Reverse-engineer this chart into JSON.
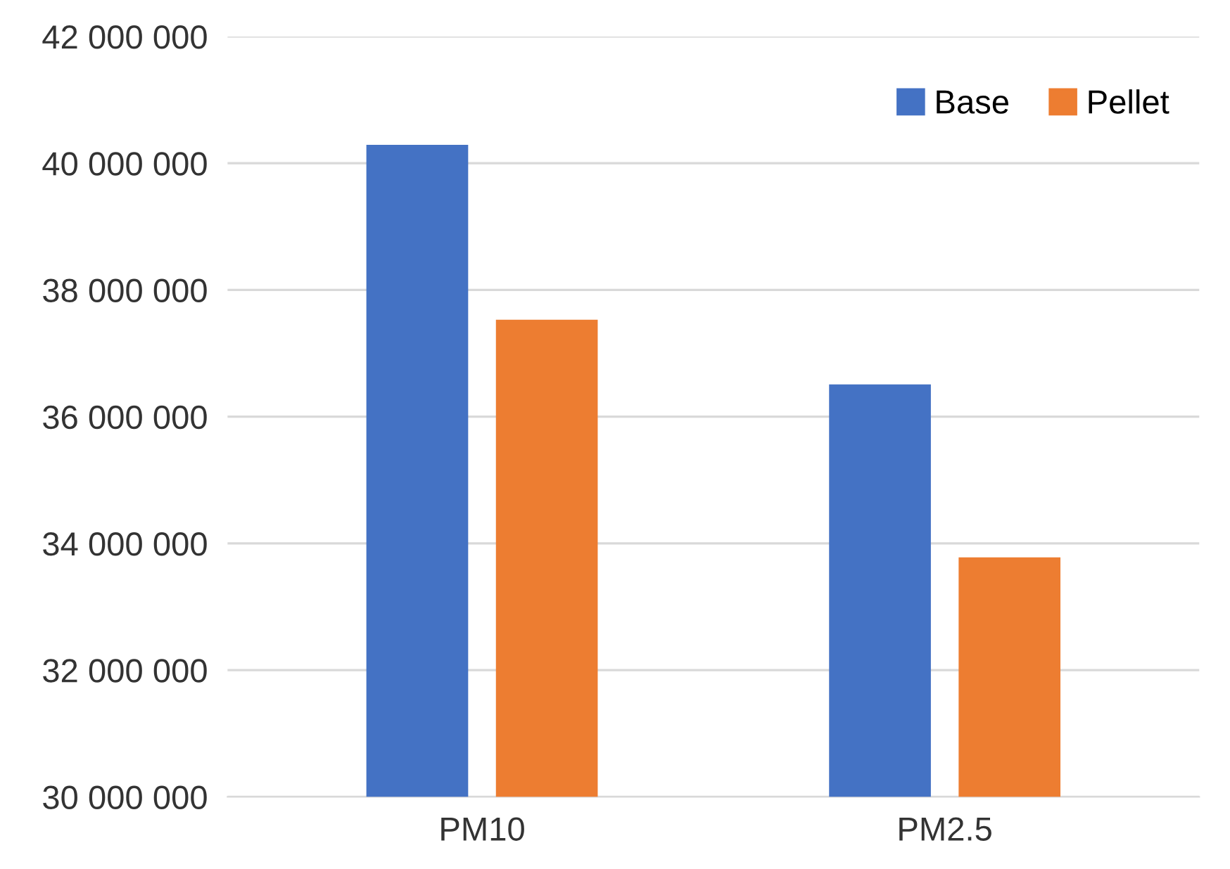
{
  "chart_data": {
    "type": "bar",
    "categories": [
      "PM10",
      "PM2.5"
    ],
    "series": [
      {
        "name": "Base",
        "color": "#4472c4",
        "values": [
          40290000,
          36510000
        ]
      },
      {
        "name": "Pellet",
        "color": "#ed7d31",
        "values": [
          37530000,
          33780000
        ]
      }
    ],
    "ylim": [
      30000000,
      42000000
    ],
    "yticks": [
      {
        "value": 30000000,
        "label": "30 000 000"
      },
      {
        "value": 32000000,
        "label": "32 000 000"
      },
      {
        "value": 34000000,
        "label": "34 000 000"
      },
      {
        "value": 36000000,
        "label": "36 000 000"
      },
      {
        "value": 38000000,
        "label": "38 000 000"
      },
      {
        "value": 40000000,
        "label": "40 000 000"
      },
      {
        "value": 42000000,
        "label": "42 000 000"
      }
    ],
    "grid": "y",
    "legend": "top right"
  }
}
